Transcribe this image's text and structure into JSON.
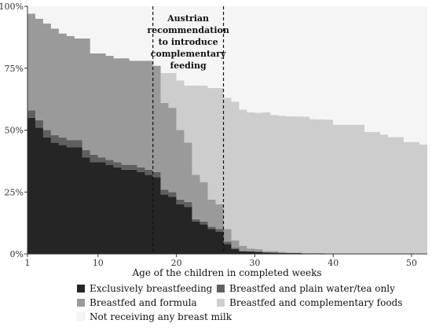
{
  "chart_data": {
    "type": "area",
    "xlabel": "Age of the children in completed weeks",
    "ylabel": "",
    "xlim": [
      1,
      52
    ],
    "ylim": [
      0,
      100
    ],
    "x_ticks": [
      1,
      10,
      20,
      30,
      40,
      50
    ],
    "y_ticks": [
      0,
      25,
      50,
      75,
      100
    ],
    "y_tick_labels": [
      "0%",
      "25%",
      "50%",
      "75%",
      "100%"
    ],
    "grid": false,
    "legend_position": "bottom",
    "x": [
      1,
      2,
      3,
      4,
      5,
      6,
      7,
      8,
      9,
      10,
      11,
      12,
      13,
      14,
      15,
      16,
      17,
      18,
      19,
      20,
      21,
      22,
      23,
      24,
      25,
      26,
      27,
      28,
      29,
      30,
      31,
      32,
      33,
      34,
      35,
      36,
      37,
      38,
      39,
      40,
      41,
      42,
      43,
      44,
      45,
      46,
      47,
      48,
      49,
      50,
      51,
      52
    ],
    "series": [
      {
        "name": "Exclusively breastfeeding",
        "color": "#252525",
        "values": [
          55,
          51,
          47,
          45,
          44,
          43,
          43,
          39,
          37,
          37,
          36,
          35,
          34,
          34,
          33,
          32,
          31,
          24,
          23,
          20,
          19,
          13,
          12,
          10,
          9,
          4,
          2,
          1,
          1,
          0.8,
          0.6,
          0.5,
          0.4,
          0.3,
          0.3,
          0.2,
          0.2,
          0.1,
          0.1,
          0.1,
          0.1,
          0.1,
          0.1,
          0.1,
          0.1,
          0.1,
          0.1,
          0.1,
          0.1,
          0.1,
          0.1,
          0.1
        ]
      },
      {
        "name": "Breastfed and plain water/tea only",
        "color": "#5f5f5f",
        "values": [
          3,
          3,
          3,
          3,
          3,
          3,
          3,
          3,
          3,
          2,
          2,
          2,
          2,
          2,
          2,
          2,
          2,
          2,
          2,
          2,
          2,
          1,
          1,
          1,
          1,
          1,
          0.5,
          0.3,
          0.2,
          0.2,
          0.1,
          0.1,
          0.1,
          0,
          0,
          0,
          0,
          0,
          0,
          0,
          0,
          0,
          0,
          0,
          0,
          0,
          0,
          0,
          0,
          0,
          0,
          0
        ]
      },
      {
        "name": "Breastfed and formula",
        "color": "#9a9a9a",
        "values": [
          39,
          41,
          43,
          43,
          42,
          42,
          41,
          45,
          41,
          42,
          42,
          42,
          43,
          42,
          43,
          44,
          43,
          35,
          34,
          28,
          24,
          18,
          16,
          11,
          10,
          5,
          3,
          2,
          1,
          1,
          0.5,
          0.5,
          0.3,
          0.3,
          0.2,
          0.2,
          0.2,
          0.2,
          0.1,
          0.1,
          0.1,
          0.1,
          0.1,
          0.1,
          0.1,
          0.1,
          0.1,
          0.1,
          0.1,
          0.1,
          0.1,
          0.1
        ]
      },
      {
        "name": "Breastfed and complementary foods",
        "color": "#cdcdcd",
        "values": [
          0,
          0,
          0,
          0,
          0,
          0,
          0,
          0,
          0,
          0,
          0,
          0,
          0,
          0,
          0,
          0,
          0,
          12,
          14,
          20,
          23,
          36,
          39,
          45,
          47,
          53,
          56,
          55,
          55,
          55,
          56,
          55,
          55,
          55,
          55,
          55,
          54,
          54,
          54,
          52,
          52,
          52,
          52,
          49,
          49,
          48,
          47,
          47,
          45,
          45,
          44,
          41
        ]
      },
      {
        "name": "Not receiving any breast milk",
        "color": "#f5f5f5",
        "values": [
          3,
          5,
          7,
          9,
          11,
          12,
          13,
          13,
          19,
          19,
          20,
          21,
          21,
          22,
          22,
          22,
          24,
          27,
          27,
          30,
          32,
          32,
          32,
          33,
          33,
          37,
          38.5,
          41.7,
          42.8,
          43,
          42.8,
          43.9,
          44.2,
          44.4,
          44.5,
          44.6,
          45.6,
          45.7,
          45.9,
          47.8,
          47.8,
          47.8,
          47.8,
          50.8,
          50.8,
          51.8,
          52.8,
          52.8,
          54.8,
          54.8,
          55.8,
          58.8
        ]
      }
    ],
    "annotations": [
      {
        "x": 17,
        "style": "dashed",
        "text": [
          "Austrian",
          "recommendation",
          "to introduce",
          "complementary",
          "feeding"
        ]
      },
      {
        "x": 26,
        "style": "dashed"
      }
    ],
    "legend": [
      "Exclusively breastfeeding",
      "Breastfed and plain water/tea only",
      "Breastfed and formula",
      "Breastfed and complementary foods",
      "Not receiving any breast milk"
    ]
  }
}
